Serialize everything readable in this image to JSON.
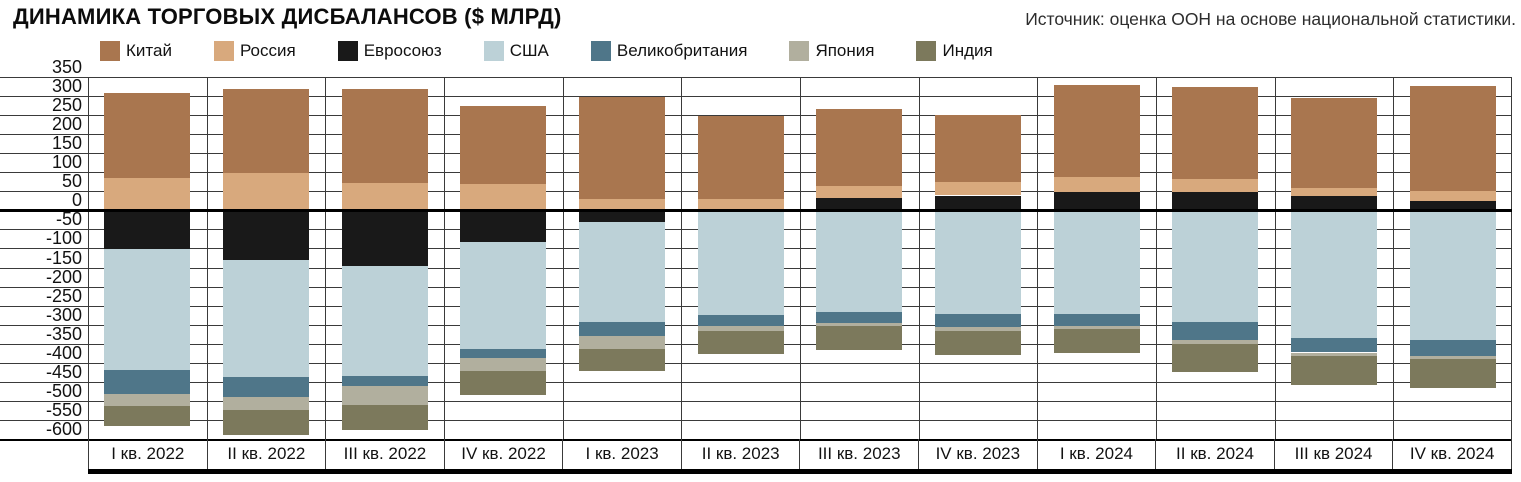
{
  "chart_data": {
    "type": "bar",
    "subtype": "stacked-bar-diverging",
    "title": "ДИНАМИКА ТОРГОВЫХ ДИСБАЛАНСОВ ($ МЛРД)",
    "source": "Источник: оценка ООН на основе национальной статистики.",
    "legend_position": "top",
    "grid": true,
    "ylim": [
      -600,
      350
    ],
    "ytick_step": 50,
    "y_ticks": [
      350,
      300,
      250,
      200,
      150,
      100,
      50,
      0,
      -50,
      -100,
      -150,
      -200,
      -250,
      -300,
      -350,
      -400,
      -450,
      -500,
      -550,
      -600
    ],
    "categories": [
      "I кв. 2022",
      "II кв. 2022",
      "III кв. 2022",
      "IV кв. 2022",
      "I кв. 2023",
      "II кв. 2023",
      "III кв. 2023",
      "IV кв. 2023",
      "I кв. 2024",
      "II кв. 2024",
      "III кв 2024",
      "IV кв. 2024"
    ],
    "series": [
      {
        "key": "china",
        "name": "Китай",
        "color": "#A9764F",
        "values": [
          222,
          220,
          247,
          207,
          266,
          216,
          202,
          176,
          242,
          242,
          235,
          275
        ]
      },
      {
        "key": "russia",
        "name": "Россия",
        "color": "#D8A97D",
        "values": [
          86,
          99,
          72,
          68,
          31,
          31,
          31,
          35,
          40,
          35,
          21,
          28
        ]
      },
      {
        "key": "eu",
        "name": "Евросоюз",
        "color": "#191919",
        "values": [
          -101,
          -129,
          -147,
          -84,
          -31,
          -5,
          32,
          39,
          48,
          48,
          39,
          24
        ]
      },
      {
        "key": "usa",
        "name": "США",
        "color": "#BCD1D7",
        "values": [
          -318,
          -308,
          -287,
          -281,
          -261,
          -270,
          -268,
          -273,
          -272,
          -294,
          -336,
          -339
        ]
      },
      {
        "key": "uk",
        "name": "Великобритания",
        "color": "#4F7689",
        "values": [
          -63,
          -54,
          -26,
          -22,
          -37,
          -28,
          -28,
          -32,
          -31,
          -46,
          -37,
          -43
        ]
      },
      {
        "key": "japan",
        "name": "Япония",
        "color": "#B1AF9E",
        "values": [
          -31,
          -33,
          -51,
          -34,
          -36,
          -13,
          -8,
          -11,
          -8,
          -12,
          -9,
          -7
        ]
      },
      {
        "key": "india",
        "name": "Индия",
        "color": "#7C795C",
        "values": [
          -53,
          -65,
          -66,
          -64,
          -57,
          -60,
          -62,
          -64,
          -62,
          -73,
          -75,
          -77
        ]
      }
    ]
  }
}
